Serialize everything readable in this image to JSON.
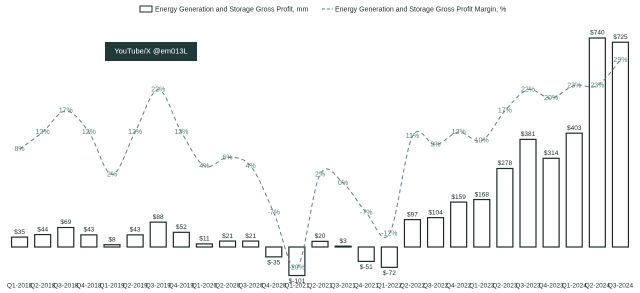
{
  "chart_data": {
    "type": "bar",
    "annotations": [
      "YouTube/X @em013L"
    ],
    "categories": [
      "Q1-2018",
      "Q2-2018",
      "Q3-2018",
      "Q4-2018",
      "Q1-2019",
      "Q2-2019",
      "Q3-2019",
      "Q4-2019",
      "Q1-2020",
      "Q2-2020",
      "Q3-2020",
      "Q4-2020",
      "Q1-2021",
      "Q2-2021",
      "Q3-2021",
      "Q4-2021",
      "Q1-2022",
      "Q2-2022",
      "Q3-2022",
      "Q4-2022",
      "Q1-2023",
      "Q2-2023",
      "Q3-2023",
      "Q4-2023",
      "Q1-2024",
      "Q2-2024",
      "Q3-2024"
    ],
    "series": [
      {
        "name": "Energy Generation and Storage Gross Profit, mm",
        "type": "bar",
        "color": "#1e2b2b",
        "values": [
          35,
          44,
          69,
          43,
          8,
          43,
          88,
          52,
          11,
          21,
          21,
          -35,
          -101,
          20,
          3,
          -51,
          -72,
          97,
          104,
          159,
          168,
          278,
          381,
          314,
          403,
          740,
          725
        ],
        "value_labels": [
          "$35",
          "$44",
          "$69",
          "$43",
          "$8",
          "$43",
          "$88",
          "$52",
          "$11",
          "$21",
          "$21",
          "$-35",
          "$-101",
          "$20",
          "$3",
          "$-51",
          "$-72",
          "$97",
          "$104",
          "$159",
          "$168",
          "$278",
          "$381",
          "$314",
          "$403",
          "$740",
          "$725"
        ]
      },
      {
        "name": "Energy Generation and Storage Gross Profit Margin, %",
        "type": "line",
        "axis": "y2",
        "color": "#5f7f80",
        "values": [
          8,
          12,
          17,
          12,
          2,
          12,
          22,
          12,
          4,
          6,
          4,
          -7,
          -20,
          2,
          0,
          -7,
          -12,
          11,
          9,
          12,
          10,
          17,
          22,
          20,
          23,
          23,
          29
        ],
        "value_labels": [
          "8%",
          "12%",
          "17%",
          "12%",
          "2%",
          "12%",
          "22%",
          "12%",
          "4%",
          "6%",
          "4%",
          "-7%",
          "-20%",
          "2%",
          "0%",
          "-7%",
          "-12%",
          "11%",
          "9%",
          "12%",
          "10%",
          "17%",
          "22%",
          "20%",
          "23%",
          "23%",
          "29%"
        ]
      }
    ]
  }
}
